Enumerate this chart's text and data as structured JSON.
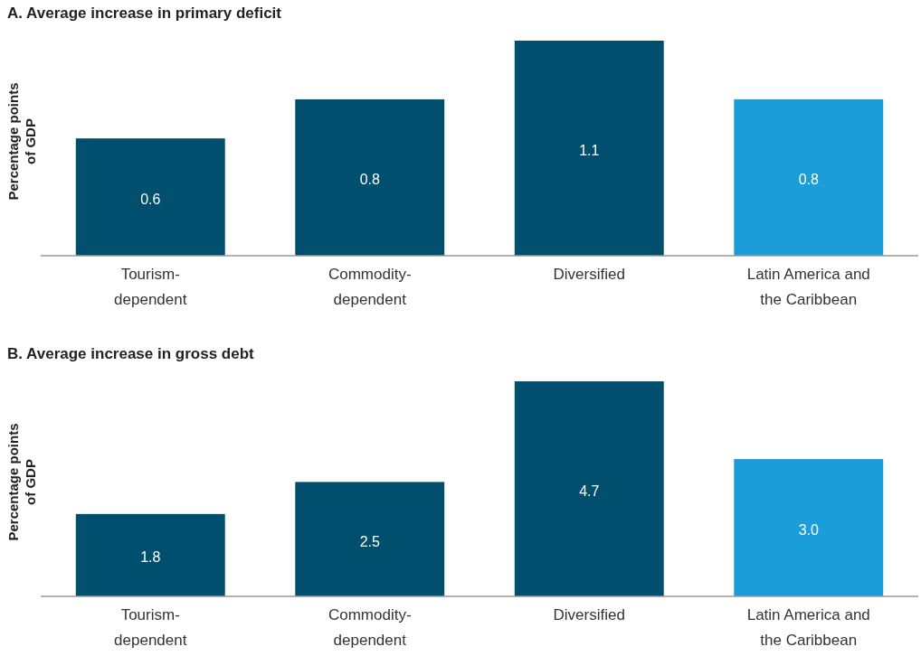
{
  "chart_data": [
    {
      "type": "bar",
      "title": "A. Average increase in primary deficit",
      "ylabel": "Percentage points of GDP",
      "categories": [
        "Tourism-dependent",
        "Commodity-dependent",
        "Diversified",
        "Latin America and the Caribbean"
      ],
      "values": [
        0.6,
        0.8,
        1.1,
        0.8
      ],
      "value_labels": [
        "0.6",
        "0.8",
        "1.1",
        "0.8"
      ],
      "colors": [
        "#004f6e",
        "#004f6e",
        "#004f6e",
        "#1a9dd9"
      ]
    },
    {
      "type": "bar",
      "title": "B. Average increase in gross debt",
      "ylabel": "Percentage points of GDP",
      "categories": [
        "Tourism-dependent",
        "Commodity-dependent",
        "Diversified",
        "Latin America and the Caribbean"
      ],
      "values": [
        1.8,
        2.5,
        4.7,
        3.0
      ],
      "value_labels": [
        "1.8",
        "2.5",
        "4.7",
        "3.0"
      ],
      "colors": [
        "#004f6e",
        "#004f6e",
        "#004f6e",
        "#1a9dd9"
      ]
    }
  ]
}
